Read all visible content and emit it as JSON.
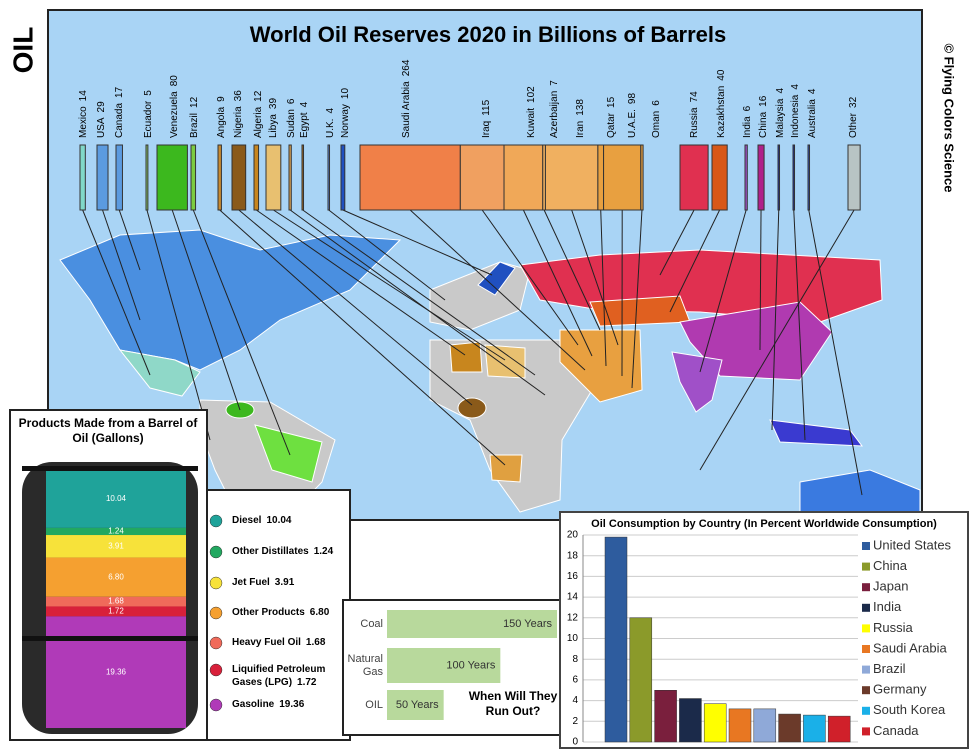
{
  "side_label": "OIL",
  "credit": "© Flying Colors Science",
  "chart_data": [
    {
      "type": "reserves-strip",
      "title": "World Oil Reserves 2020 in Billions of Barrels",
      "categories": [
        "Mexico",
        "USA",
        "Canada",
        "Ecuador",
        "Venezuela",
        "Brazil",
        "Angola",
        "Nigeria",
        "Algeria",
        "Libya",
        "Sudan",
        "Egypt",
        "U.K.",
        "Norway",
        "Saudi Arabia",
        "Iraq",
        "Kuwait",
        "Azerbaijan",
        "Iran",
        "Qatar",
        "U.A.E.",
        "Oman",
        "Russia",
        "Kazakhstan",
        "India",
        "China",
        "Malaysia",
        "Indonesia",
        "Australia",
        "Other"
      ],
      "values": [
        14,
        29,
        17,
        5,
        80,
        12,
        9,
        36,
        12,
        39,
        6,
        4,
        4,
        10,
        264,
        115,
        102,
        7,
        138,
        15,
        98,
        6,
        74,
        40,
        6,
        16,
        4,
        4,
        4,
        32
      ],
      "colors": [
        "#80d8c8",
        "#5b9be0",
        "#5b9be0",
        "#8bc86a",
        "#3cb81e",
        "#7ccc40",
        "#c88a30",
        "#8a5a1a",
        "#c8861e",
        "#e8c070",
        "#d8a050",
        "#b07020",
        "#5a8ae0",
        "#2050c0",
        "#f08048",
        "#f0a060",
        "#f0a858",
        "#f0b060",
        "#f0b060",
        "#e8a040",
        "#e8a040",
        "#e8a040",
        "#e03050",
        "#d85818",
        "#a050c8",
        "#b0208a",
        "#2030a0",
        "#2030a0",
        "#3050c0",
        "#b8c4c4"
      ]
    },
    {
      "type": "barrel-stack",
      "title": "Products Made from a Barrel of Oil (Gallons)",
      "categories": [
        "Diesel",
        "Other Distillates",
        "Jet Fuel",
        "Other Products",
        "Heavy Fuel Oil",
        "Liquified Petroleum Gases (LPG)",
        "Gasoline"
      ],
      "values": [
        10.04,
        1.24,
        3.91,
        6.8,
        1.68,
        1.72,
        19.36
      ],
      "value_labels": [
        "10.04",
        "1.24",
        "3.91",
        "6.80",
        "1.68",
        "1.72",
        "19.36"
      ],
      "colors": [
        "#1fa39a",
        "#22a860",
        "#f7e23a",
        "#f5a030",
        "#f06a5a",
        "#d8203a",
        "#b03ab8"
      ]
    },
    {
      "type": "runout",
      "title": "When Will They Run Out?",
      "categories": [
        "Coal",
        "Natural Gas",
        "OIL"
      ],
      "values": [
        150,
        100,
        50
      ],
      "value_labels": [
        "150 Years",
        "100 Years",
        "50 Years"
      ],
      "color": "#b8d99c"
    },
    {
      "type": "bar",
      "title": "Oil Consumption by Country (In Percent Worldwide Consumption)",
      "ylim": [
        0,
        20
      ],
      "yticks": [
        0,
        2,
        4,
        6,
        8,
        10,
        12,
        14,
        16,
        18,
        20
      ],
      "grid": true,
      "series": [
        {
          "name": "United States",
          "color": "#2e5c9e",
          "values": [
            19.8
          ]
        },
        {
          "name": "China",
          "color": "#8b9a2a",
          "values": [
            12
          ]
        },
        {
          "name": "Japan",
          "color": "#7a1f3d",
          "values": [
            5
          ]
        },
        {
          "name": "India",
          "color": "#1b2a4a",
          "values": [
            4.2
          ]
        },
        {
          "name": "Russia",
          "color": "#ffff00",
          "values": [
            3.7
          ]
        },
        {
          "name": "Saudi Arabia",
          "color": "#e87722",
          "values": [
            3.2
          ]
        },
        {
          "name": "Brazil",
          "color": "#8fa9d8",
          "values": [
            3.2
          ]
        },
        {
          "name": "Germany",
          "color": "#6b3a2a",
          "values": [
            2.7
          ]
        },
        {
          "name": "South Korea",
          "color": "#1ab0e8",
          "values": [
            2.6
          ]
        },
        {
          "name": "Canada",
          "color": "#d0202a",
          "values": [
            2.5
          ]
        }
      ]
    }
  ]
}
